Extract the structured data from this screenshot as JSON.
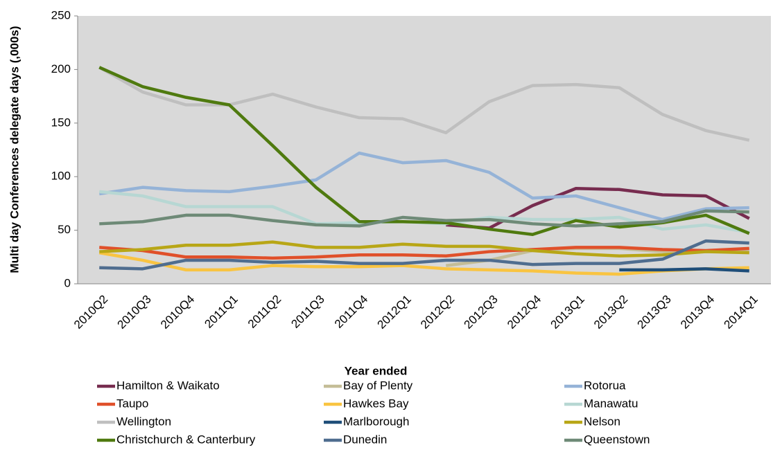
{
  "chart_data": {
    "type": "line",
    "y_label": "Multi day Conferences delegate days (,000s)",
    "x_label": "Year ended",
    "categories": [
      "2010Q2",
      "2010Q3",
      "2010Q4",
      "2011Q1",
      "2011Q2",
      "2011Q3",
      "2011Q4",
      "2012Q1",
      "2012Q2",
      "2012Q3",
      "2012Q4",
      "2013Q1",
      "2013Q2",
      "2013Q3",
      "2013Q4",
      "2014Q1"
    ],
    "ylim": [
      0,
      250
    ],
    "yticks": [
      0,
      50,
      100,
      150,
      200,
      250
    ],
    "grid": false,
    "legend": "bottom",
    "series": [
      {
        "name": "Hamilton & Waikato",
        "color": "#772c4f",
        "values": [
          null,
          null,
          null,
          null,
          null,
          null,
          null,
          null,
          55,
          52,
          73,
          89,
          88,
          83,
          82,
          61
        ]
      },
      {
        "name": "Bay of Plenty",
        "color": "#c4bd97",
        "values": [
          null,
          null,
          null,
          null,
          null,
          null,
          null,
          null,
          17,
          22,
          31,
          33,
          33,
          30,
          30,
          30
        ]
      },
      {
        "name": "Rotorua",
        "color": "#95b3d7",
        "values": [
          84,
          90,
          87,
          86,
          91,
          97,
          122,
          113,
          115,
          104,
          80,
          82,
          71,
          60,
          70,
          71
        ]
      },
      {
        "name": "Taupo",
        "color": "#e0502a",
        "values": [
          34,
          31,
          25,
          25,
          24,
          25,
          27,
          27,
          26,
          30,
          32,
          34,
          34,
          32,
          31,
          33
        ]
      },
      {
        "name": "Hawkes Bay",
        "color": "#f9c441",
        "values": [
          29,
          22,
          13,
          13,
          17,
          16,
          16,
          17,
          14,
          13,
          12,
          10,
          9,
          12,
          14,
          15
        ]
      },
      {
        "name": "Manawatu",
        "color": "#b7d7d3",
        "values": [
          86,
          82,
          72,
          72,
          72,
          56,
          57,
          58,
          56,
          62,
          60,
          60,
          62,
          51,
          55,
          48
        ]
      },
      {
        "name": "Wellington",
        "color": "#bfbfbf",
        "values": [
          202,
          179,
          167,
          167,
          177,
          165,
          155,
          154,
          141,
          170,
          185,
          186,
          183,
          158,
          143,
          134
        ]
      },
      {
        "name": "Marlborough",
        "color": "#1f4e79",
        "values": [
          null,
          null,
          null,
          null,
          null,
          null,
          null,
          null,
          null,
          null,
          null,
          null,
          13,
          13,
          14,
          12
        ]
      },
      {
        "name": "Nelson",
        "color": "#b8a616",
        "values": [
          30,
          32,
          36,
          36,
          39,
          34,
          34,
          37,
          35,
          35,
          31,
          28,
          26,
          27,
          30,
          29
        ]
      },
      {
        "name": "Christchurch & Canterbury",
        "color": "#4f7a0f",
        "values": [
          202,
          184,
          174,
          167,
          129,
          90,
          58,
          58,
          57,
          51,
          46,
          59,
          53,
          57,
          64,
          47
        ]
      },
      {
        "name": "Dunedin",
        "color": "#4f6d8f",
        "values": [
          15,
          14,
          22,
          22,
          20,
          21,
          19,
          19,
          22,
          22,
          18,
          19,
          19,
          23,
          40,
          38
        ]
      },
      {
        "name": "Queenstown",
        "color": "#6e8a77",
        "values": [
          56,
          58,
          64,
          64,
          59,
          55,
          54,
          62,
          59,
          60,
          56,
          54,
          56,
          58,
          68,
          67
        ]
      }
    ]
  }
}
